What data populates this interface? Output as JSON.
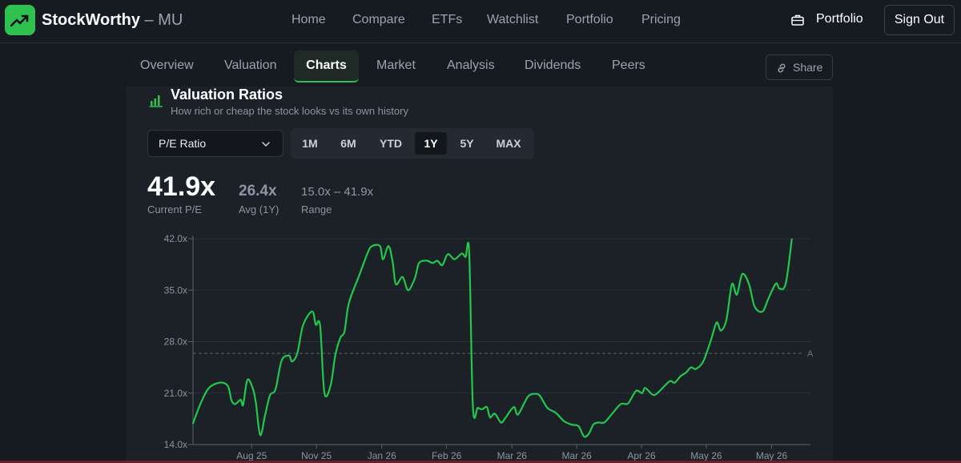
{
  "app": {
    "brand": "StockWorthy",
    "symbol": "– MU",
    "accent_color": "#2fc14f",
    "logo_icon": "trending-up-icon"
  },
  "nav": {
    "items": [
      "Home",
      "Compare",
      "ETFs",
      "Watchlist",
      "Portfolio",
      "Pricing"
    ],
    "portfolio_button": "Portfolio",
    "portfolio_icon": "briefcase-icon",
    "sign_out": "Sign Out"
  },
  "tabs": {
    "items": [
      "Overview",
      "Valuation",
      "Charts",
      "Market",
      "Analysis",
      "Dividends",
      "Peers"
    ],
    "active": "Charts",
    "share_label": "Share",
    "share_icon": "link-icon"
  },
  "card": {
    "title": "Valuation Ratios",
    "subtitle": "How rich or cheap the stock looks vs its own history",
    "icon": "bar-chart-icon",
    "metric_select": "P/E Ratio",
    "ranges": [
      "1M",
      "6M",
      "YTD",
      "1Y",
      "5Y",
      "MAX"
    ],
    "active_range": "1Y"
  },
  "stats": {
    "current_value": "41.9x",
    "current_label": "Current P/E",
    "avg_value": "26.4x",
    "avg_label": "Avg (1Y)",
    "range_value": "15.0x – 41.9x",
    "range_label": "Range"
  },
  "chart_data": {
    "type": "line",
    "line_color": "#22c84b",
    "ylim": [
      14,
      42
    ],
    "yticks": [
      "14.0x",
      "21.0x",
      "28.0x",
      "35.0x",
      "42.0x"
    ],
    "ytick_values": [
      14,
      21,
      28,
      35,
      42
    ],
    "xticks": [
      "Aug 25",
      "Nov 25",
      "Jan 26",
      "Feb 26",
      "Mar 26",
      "Mar 26",
      "Apr 26",
      "May 26",
      "May 26"
    ],
    "xtick_positions": [
      0.096,
      0.202,
      0.309,
      0.415,
      0.522,
      0.628,
      0.734,
      0.84,
      0.947
    ],
    "average": 26.4,
    "average_label": "A",
    "points": [
      [
        0.0,
        16.9
      ],
      [
        0.013,
        19.7
      ],
      [
        0.025,
        21.6
      ],
      [
        0.038,
        22.3
      ],
      [
        0.05,
        22.4
      ],
      [
        0.058,
        21.8
      ],
      [
        0.063,
        20.0
      ],
      [
        0.069,
        19.5
      ],
      [
        0.078,
        20.1
      ],
      [
        0.082,
        19.4
      ],
      [
        0.089,
        22.8
      ],
      [
        0.098,
        21.6
      ],
      [
        0.103,
        19.6
      ],
      [
        0.11,
        15.3
      ],
      [
        0.118,
        18.0
      ],
      [
        0.126,
        20.7
      ],
      [
        0.135,
        21.5
      ],
      [
        0.145,
        25.4
      ],
      [
        0.157,
        26.1
      ],
      [
        0.162,
        25.3
      ],
      [
        0.171,
        26.5
      ],
      [
        0.18,
        30.2
      ],
      [
        0.195,
        32.1
      ],
      [
        0.201,
        30.3
      ],
      [
        0.208,
        30.2
      ],
      [
        0.215,
        21.1
      ],
      [
        0.225,
        22.0
      ],
      [
        0.233,
        26.2
      ],
      [
        0.241,
        28.5
      ],
      [
        0.248,
        29.4
      ],
      [
        0.255,
        33.2
      ],
      [
        0.272,
        37.0
      ],
      [
        0.286,
        40.1
      ],
      [
        0.293,
        41.0
      ],
      [
        0.306,
        41.0
      ],
      [
        0.311,
        39.2
      ],
      [
        0.32,
        41.0
      ],
      [
        0.327,
        38.7
      ],
      [
        0.332,
        35.8
      ],
      [
        0.343,
        36.8
      ],
      [
        0.352,
        35.0
      ],
      [
        0.363,
        36.6
      ],
      [
        0.37,
        38.7
      ],
      [
        0.383,
        39.0
      ],
      [
        0.392,
        38.7
      ],
      [
        0.4,
        39.0
      ],
      [
        0.408,
        38.4
      ],
      [
        0.417,
        39.9
      ],
      [
        0.428,
        39.2
      ],
      [
        0.44,
        40.0
      ],
      [
        0.446,
        39.5
      ],
      [
        0.452,
        40.1
      ],
      [
        0.458,
        19.2
      ],
      [
        0.466,
        19.0
      ],
      [
        0.473,
        18.8
      ],
      [
        0.481,
        19.1
      ],
      [
        0.486,
        17.7
      ],
      [
        0.494,
        18.2
      ],
      [
        0.504,
        17.0
      ],
      [
        0.511,
        17.6
      ],
      [
        0.525,
        19.1
      ],
      [
        0.532,
        18.1
      ],
      [
        0.548,
        20.5
      ],
      [
        0.56,
        20.9
      ],
      [
        0.568,
        20.6
      ],
      [
        0.58,
        19.0
      ],
      [
        0.594,
        18.3
      ],
      [
        0.607,
        17.2
      ],
      [
        0.62,
        16.7
      ],
      [
        0.631,
        16.5
      ],
      [
        0.64,
        15.1
      ],
      [
        0.648,
        15.5
      ],
      [
        0.655,
        16.7
      ],
      [
        0.663,
        17.0
      ],
      [
        0.673,
        17.0
      ],
      [
        0.684,
        18.0
      ],
      [
        0.7,
        19.5
      ],
      [
        0.712,
        19.6
      ],
      [
        0.725,
        21.3
      ],
      [
        0.735,
        21.0
      ],
      [
        0.74,
        21.7
      ],
      [
        0.752,
        20.8
      ],
      [
        0.76,
        21.0
      ],
      [
        0.78,
        22.6
      ],
      [
        0.788,
        22.4
      ],
      [
        0.798,
        23.3
      ],
      [
        0.807,
        23.8
      ],
      [
        0.815,
        24.5
      ],
      [
        0.823,
        24.3
      ],
      [
        0.835,
        25.3
      ],
      [
        0.848,
        28.3
      ],
      [
        0.857,
        30.6
      ],
      [
        0.864,
        29.5
      ],
      [
        0.873,
        31.0
      ],
      [
        0.882,
        35.8
      ],
      [
        0.89,
        34.4
      ],
      [
        0.899,
        37.2
      ],
      [
        0.91,
        35.8
      ],
      [
        0.919,
        32.8
      ],
      [
        0.932,
        32.1
      ],
      [
        0.942,
        33.9
      ],
      [
        0.954,
        35.9
      ],
      [
        0.96,
        35.2
      ],
      [
        0.97,
        35.9
      ],
      [
        0.98,
        41.9
      ]
    ]
  }
}
